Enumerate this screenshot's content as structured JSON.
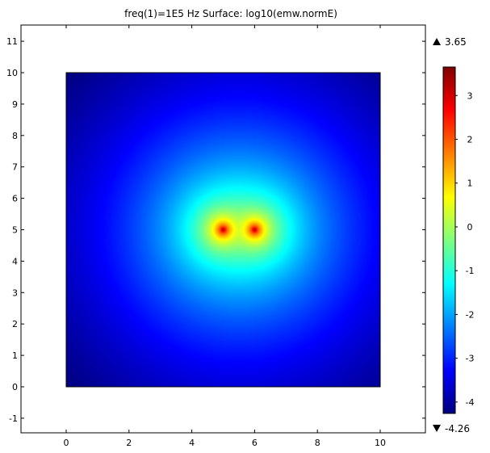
{
  "chart_data": {
    "type": "heatmap",
    "title": "freq(1)=1E5 Hz   Surface: log10(emw.normE)",
    "quantity": "log10(emw.normE)",
    "frequency": "1E5 Hz",
    "xlim": [
      -1.3,
      11.6
    ],
    "ylim": [
      -1.45,
      11.55
    ],
    "domain": {
      "x": [
        0,
        10
      ],
      "y": [
        0,
        10
      ]
    },
    "x_ticks": [
      0,
      2,
      4,
      6,
      8,
      10
    ],
    "y_ticks": [
      -1,
      0,
      1,
      2,
      3,
      4,
      5,
      6,
      7,
      8,
      9,
      10,
      11
    ],
    "grid": false,
    "colorbar": {
      "min": -4.26,
      "max": 3.65,
      "max_label": "3.65",
      "min_label": "-4.26",
      "ticks": [
        3,
        2,
        1,
        0,
        -1,
        -2,
        -3,
        -4
      ],
      "colormap": "rainbow"
    },
    "field_model": {
      "center_value": 3.65,
      "corner_value": -4.26,
      "sources": [
        {
          "x": 5.0,
          "y": 5.0
        },
        {
          "x": 6.0,
          "y": 5.0
        }
      ]
    }
  },
  "colors": {
    "colormap": [
      "#00007f",
      "#0000ff",
      "#007fff",
      "#00ffff",
      "#7fff7f",
      "#ffff00",
      "#ff7f00",
      "#ff0000",
      "#7f0000"
    ],
    "axis": "#000000",
    "background": "#ffffff"
  }
}
